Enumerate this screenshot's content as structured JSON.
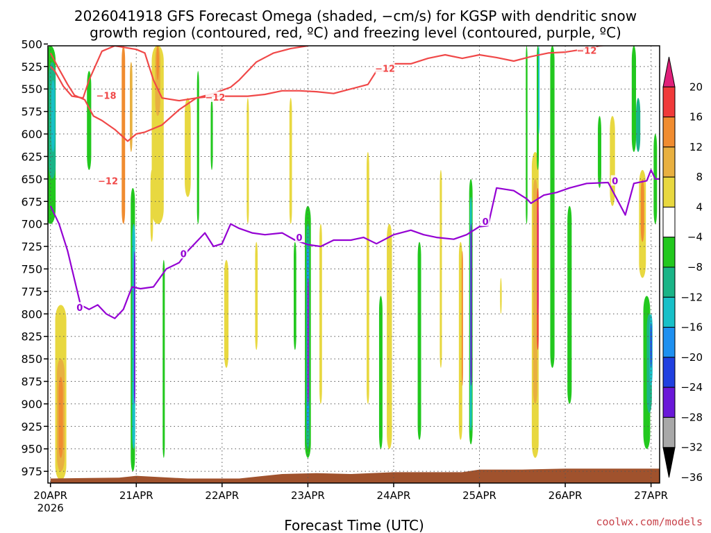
{
  "title": {
    "line1": "2026041918 GFS Forecast Omega (shaded, −cm/s) for KGSP with dendritic snow",
    "line2": "growth region (contoured, red, ºC) and freezing level (contoured, purple, ºC)"
  },
  "credit": "coolwx.com/models",
  "colors": {
    "dgz_line": "#f04848",
    "freezing_line": "#9400d3",
    "ground": "#a0522d",
    "grid": "#555555"
  },
  "chart_data": {
    "type": "heatmap",
    "xlabel": "Forecast Time (UTC)",
    "ylabel": "",
    "x_unit": "days after 2026-04-20 00Z",
    "xlim": [
      -0.03,
      7.1
    ],
    "ylim": [
      502,
      988
    ],
    "x_ticks": [
      {
        "x": 0,
        "label": "20APR",
        "sub": "2026"
      },
      {
        "x": 1,
        "label": "21APR",
        "sub": ""
      },
      {
        "x": 2,
        "label": "22APR",
        "sub": ""
      },
      {
        "x": 3,
        "label": "23APR",
        "sub": ""
      },
      {
        "x": 4,
        "label": "24APR",
        "sub": ""
      },
      {
        "x": 5,
        "label": "25APR",
        "sub": ""
      },
      {
        "x": 6,
        "label": "26APR",
        "sub": ""
      },
      {
        "x": 7,
        "label": "27APR",
        "sub": ""
      }
    ],
    "y_ticks": [
      "500",
      "525",
      "550",
      "575",
      "600",
      "625",
      "650",
      "675",
      "700",
      "725",
      "750",
      "775",
      "800",
      "825",
      "850",
      "875",
      "900",
      "925",
      "950",
      "975"
    ],
    "colorbar": {
      "labels": [
        "20",
        "16",
        "12",
        "8",
        "4",
        "−4",
        "−8",
        "−12",
        "−16",
        "−20",
        "−24",
        "−28",
        "−32",
        "−36"
      ],
      "bands": [
        {
          "lo": 20,
          "hi": 24,
          "color": "#e0207a"
        },
        {
          "lo": 16,
          "hi": 20,
          "color": "#f03a3a"
        },
        {
          "lo": 12,
          "hi": 16,
          "color": "#f08c30"
        },
        {
          "lo": 8,
          "hi": 12,
          "color": "#e8b040"
        },
        {
          "lo": 4,
          "hi": 8,
          "color": "#e8d840"
        },
        {
          "lo": -4,
          "hi": 4,
          "color": "#ffffff"
        },
        {
          "lo": -8,
          "hi": -4,
          "color": "#22c81e"
        },
        {
          "lo": -12,
          "hi": -8,
          "color": "#1ab487"
        },
        {
          "lo": -16,
          "hi": -12,
          "color": "#18c0c8"
        },
        {
          "lo": -20,
          "hi": -16,
          "color": "#1e90f0"
        },
        {
          "lo": -24,
          "hi": -20,
          "color": "#2040e0"
        },
        {
          "lo": -28,
          "hi": -24,
          "color": "#6a18d8"
        },
        {
          "lo": -32,
          "hi": -28,
          "color": "#a010c8"
        },
        {
          "lo": -36,
          "hi": -32,
          "color": "#a8a8a8"
        }
      ]
    },
    "omega_features": [
      {
        "x": 0.0,
        "w": 0.12,
        "p0": 502,
        "p1": 700,
        "v": -8
      },
      {
        "x": 0.02,
        "w": 0.08,
        "p0": 520,
        "p1": 650,
        "v": -12
      },
      {
        "x": 0.03,
        "w": 0.04,
        "p0": 540,
        "p1": 620,
        "v": -14
      },
      {
        "x": 0.12,
        "w": 0.13,
        "p0": 790,
        "p1": 985,
        "v": 6
      },
      {
        "x": 0.12,
        "w": 0.09,
        "p0": 850,
        "p1": 975,
        "v": 10
      },
      {
        "x": 0.12,
        "w": 0.05,
        "p0": 870,
        "p1": 960,
        "v": 14
      },
      {
        "x": 0.45,
        "w": 0.05,
        "p0": 530,
        "p1": 640,
        "v": -6
      },
      {
        "x": 0.85,
        "w": 0.04,
        "p0": 502,
        "p1": 700,
        "v": 12
      },
      {
        "x": 0.94,
        "w": 0.03,
        "p0": 520,
        "p1": 620,
        "v": 8
      },
      {
        "x": 0.96,
        "w": 0.05,
        "p0": 660,
        "p1": 975,
        "v": -6
      },
      {
        "x": 0.97,
        "w": 0.035,
        "p0": 700,
        "p1": 950,
        "v": -16
      },
      {
        "x": 0.98,
        "w": 0.015,
        "p0": 730,
        "p1": 900,
        "v": -26
      },
      {
        "x": 1.25,
        "w": 0.14,
        "p0": 502,
        "p1": 700,
        "v": 5
      },
      {
        "x": 1.25,
        "w": 0.06,
        "p0": 502,
        "p1": 580,
        "v": 10
      },
      {
        "x": 1.25,
        "w": 0.03,
        "p0": 502,
        "p1": 540,
        "v": 15
      },
      {
        "x": 1.18,
        "w": 0.03,
        "p0": 640,
        "p1": 720,
        "v": 6
      },
      {
        "x": 1.32,
        "w": 0.025,
        "p0": 740,
        "p1": 960,
        "v": -6
      },
      {
        "x": 1.6,
        "w": 0.07,
        "p0": 560,
        "p1": 670,
        "v": 5
      },
      {
        "x": 1.72,
        "w": 0.025,
        "p0": 530,
        "p1": 700,
        "v": -6
      },
      {
        "x": 1.88,
        "w": 0.025,
        "p0": 560,
        "p1": 640,
        "v": -6
      },
      {
        "x": 2.05,
        "w": 0.05,
        "p0": 740,
        "p1": 860,
        "v": 6
      },
      {
        "x": 2.3,
        "w": 0.025,
        "p0": 560,
        "p1": 700,
        "v": 5
      },
      {
        "x": 2.4,
        "w": 0.03,
        "p0": 720,
        "p1": 840,
        "v": 5
      },
      {
        "x": 2.8,
        "w": 0.03,
        "p0": 560,
        "p1": 700,
        "v": 5
      },
      {
        "x": 2.85,
        "w": 0.03,
        "p0": 720,
        "p1": 840,
        "v": -6
      },
      {
        "x": 3.0,
        "w": 0.07,
        "p0": 680,
        "p1": 960,
        "v": -7
      },
      {
        "x": 3.0,
        "w": 0.04,
        "p0": 700,
        "p1": 950,
        "v": -12
      },
      {
        "x": 3.0,
        "w": 0.022,
        "p0": 720,
        "p1": 930,
        "v": -18
      },
      {
        "x": 3.0,
        "w": 0.01,
        "p0": 760,
        "p1": 900,
        "v": -29
      },
      {
        "x": 3.15,
        "w": 0.03,
        "p0": 700,
        "p1": 900,
        "v": 5
      },
      {
        "x": 3.7,
        "w": 0.03,
        "p0": 620,
        "p1": 900,
        "v": 5
      },
      {
        "x": 3.95,
        "w": 0.06,
        "p0": 700,
        "p1": 950,
        "v": 5
      },
      {
        "x": 3.85,
        "w": 0.04,
        "p0": 780,
        "p1": 950,
        "v": -6
      },
      {
        "x": 4.3,
        "w": 0.04,
        "p0": 720,
        "p1": 940,
        "v": -6
      },
      {
        "x": 4.55,
        "w": 0.025,
        "p0": 640,
        "p1": 860,
        "v": 5
      },
      {
        "x": 4.78,
        "w": 0.04,
        "p0": 720,
        "p1": 940,
        "v": 5
      },
      {
        "x": 4.8,
        "w": 0.015,
        "p0": 730,
        "p1": 880,
        "v": 14
      },
      {
        "x": 4.9,
        "w": 0.04,
        "p0": 650,
        "p1": 945,
        "v": -7
      },
      {
        "x": 4.9,
        "w": 0.022,
        "p0": 670,
        "p1": 930,
        "v": -15
      },
      {
        "x": 4.9,
        "w": 0.01,
        "p0": 700,
        "p1": 880,
        "v": -27
      },
      {
        "x": 5.25,
        "w": 0.02,
        "p0": 760,
        "p1": 800,
        "v": 5
      },
      {
        "x": 5.55,
        "w": 0.02,
        "p0": 502,
        "p1": 700,
        "v": -6
      },
      {
        "x": 5.65,
        "w": 0.08,
        "p0": 620,
        "p1": 960,
        "v": 5
      },
      {
        "x": 5.65,
        "w": 0.05,
        "p0": 650,
        "p1": 900,
        "v": 8
      },
      {
        "x": 5.68,
        "w": 0.02,
        "p0": 660,
        "p1": 840,
        "v": 18
      },
      {
        "x": 5.68,
        "w": 0.012,
        "p0": 680,
        "p1": 800,
        "v": 22
      },
      {
        "x": 5.68,
        "w": 0.025,
        "p0": 502,
        "p1": 640,
        "v": -8
      },
      {
        "x": 5.69,
        "w": 0.012,
        "p0": 502,
        "p1": 600,
        "v": -13
      },
      {
        "x": 5.85,
        "w": 0.05,
        "p0": 502,
        "p1": 860,
        "v": -6
      },
      {
        "x": 6.05,
        "w": 0.05,
        "p0": 680,
        "p1": 900,
        "v": -6
      },
      {
        "x": 6.4,
        "w": 0.04,
        "p0": 580,
        "p1": 660,
        "v": -6
      },
      {
        "x": 6.55,
        "w": 0.06,
        "p0": 580,
        "p1": 680,
        "v": 5
      },
      {
        "x": 6.8,
        "w": 0.05,
        "p0": 502,
        "p1": 620,
        "v": -6
      },
      {
        "x": 6.85,
        "w": 0.05,
        "p0": 560,
        "p1": 620,
        "v": -11
      },
      {
        "x": 6.9,
        "w": 0.08,
        "p0": 640,
        "p1": 760,
        "v": 6
      },
      {
        "x": 6.9,
        "w": 0.04,
        "p0": 650,
        "p1": 720,
        "v": 12
      },
      {
        "x": 6.95,
        "w": 0.08,
        "p0": 780,
        "p1": 950,
        "v": -7
      },
      {
        "x": 6.98,
        "w": 0.06,
        "p0": 800,
        "p1": 910,
        "v": -12
      },
      {
        "x": 7.0,
        "w": 0.035,
        "p0": 800,
        "p1": 880,
        "v": -16
      },
      {
        "x": 7.0,
        "w": 0.018,
        "p0": 810,
        "p1": 860,
        "v": -22
      },
      {
        "x": 7.05,
        "w": 0.04,
        "p0": 600,
        "p1": 700,
        "v": -6
      }
    ],
    "dgz_minus12": [
      [
        0.0,
        525
      ],
      [
        0.05,
        530
      ],
      [
        0.15,
        547
      ],
      [
        0.25,
        558
      ],
      [
        0.38,
        560
      ],
      [
        0.45,
        540
      ],
      [
        0.52,
        525
      ],
      [
        0.6,
        508
      ],
      [
        0.75,
        502
      ],
      [
        1.0,
        506
      ],
      [
        1.1,
        510
      ],
      [
        1.2,
        540
      ],
      [
        1.3,
        560
      ],
      [
        1.5,
        563
      ],
      [
        1.7,
        560
      ],
      [
        1.9,
        558
      ],
      [
        2.1,
        558
      ],
      [
        2.3,
        558
      ],
      [
        2.5,
        556
      ],
      [
        2.7,
        552
      ],
      [
        2.9,
        552
      ],
      [
        3.1,
        553
      ],
      [
        3.3,
        555
      ],
      [
        3.5,
        550
      ],
      [
        3.7,
        545
      ],
      [
        3.8,
        530
      ],
      [
        3.9,
        530
      ],
      [
        4.0,
        522
      ],
      [
        4.2,
        522
      ],
      [
        4.4,
        516
      ],
      [
        4.6,
        512
      ],
      [
        4.8,
        516
      ],
      [
        5.0,
        512
      ],
      [
        5.2,
        515
      ],
      [
        5.4,
        519
      ],
      [
        5.6,
        514
      ],
      [
        5.8,
        510
      ],
      [
        6.0,
        509
      ],
      [
        6.2,
        506
      ],
      [
        6.4,
        502
      ],
      [
        6.6,
        500
      ],
      [
        7.2,
        500
      ]
    ],
    "dgz_minus18": [
      [
        0.0,
        510
      ],
      [
        0.1,
        528
      ],
      [
        0.2,
        545
      ],
      [
        0.28,
        557
      ],
      [
        0.4,
        562
      ],
      [
        0.5,
        580
      ],
      [
        0.6,
        585
      ],
      [
        0.75,
        595
      ],
      [
        0.9,
        608
      ],
      [
        1.0,
        600
      ],
      [
        1.1,
        598
      ],
      [
        1.3,
        590
      ],
      [
        1.5,
        573
      ],
      [
        1.7,
        560
      ],
      [
        1.9,
        555
      ],
      [
        2.1,
        548
      ],
      [
        2.2,
        540
      ],
      [
        2.4,
        520
      ],
      [
        2.6,
        510
      ],
      [
        2.8,
        505
      ],
      [
        3.0,
        502
      ]
    ],
    "freezing_level": [
      [
        0.0,
        680
      ],
      [
        0.1,
        700
      ],
      [
        0.2,
        730
      ],
      [
        0.3,
        770
      ],
      [
        0.35,
        790
      ],
      [
        0.45,
        795
      ],
      [
        0.55,
        790
      ],
      [
        0.65,
        800
      ],
      [
        0.75,
        805
      ],
      [
        0.85,
        795
      ],
      [
        0.95,
        770
      ],
      [
        1.05,
        772
      ],
      [
        1.2,
        770
      ],
      [
        1.35,
        750
      ],
      [
        1.5,
        743
      ],
      [
        1.6,
        730
      ],
      [
        1.7,
        720
      ],
      [
        1.8,
        710
      ],
      [
        1.9,
        725
      ],
      [
        2.0,
        722
      ],
      [
        2.1,
        700
      ],
      [
        2.2,
        705
      ],
      [
        2.35,
        710
      ],
      [
        2.5,
        712
      ],
      [
        2.7,
        710
      ],
      [
        2.85,
        718
      ],
      [
        3.0,
        723
      ],
      [
        3.15,
        725
      ],
      [
        3.3,
        718
      ],
      [
        3.5,
        718
      ],
      [
        3.65,
        715
      ],
      [
        3.8,
        722
      ],
      [
        4.0,
        712
      ],
      [
        4.2,
        707
      ],
      [
        4.35,
        712
      ],
      [
        4.5,
        715
      ],
      [
        4.7,
        717
      ],
      [
        4.85,
        712
      ],
      [
        5.0,
        703
      ],
      [
        5.1,
        702
      ],
      [
        5.2,
        660
      ],
      [
        5.4,
        663
      ],
      [
        5.55,
        672
      ],
      [
        5.6,
        677
      ],
      [
        5.75,
        668
      ],
      [
        5.9,
        665
      ],
      [
        6.05,
        660
      ],
      [
        6.25,
        655
      ],
      [
        6.5,
        654
      ],
      [
        6.7,
        690
      ],
      [
        6.8,
        655
      ],
      [
        6.95,
        652
      ],
      [
        7.0,
        640
      ],
      [
        7.05,
        650
      ],
      [
        7.2,
        650
      ]
    ],
    "contour_labels": [
      {
        "x": 0.65,
        "p": 557,
        "text": "−18",
        "line": "dgz"
      },
      {
        "x": 0.67,
        "p": 652,
        "text": "−12",
        "line": "dgz"
      },
      {
        "x": 1.92,
        "p": 559,
        "text": "−12",
        "line": "dgz"
      },
      {
        "x": 3.9,
        "p": 527,
        "text": "−12",
        "line": "dgz"
      },
      {
        "x": 6.25,
        "p": 507,
        "text": "−12",
        "line": "dgz"
      },
      {
        "x": 0.34,
        "p": 793,
        "text": "0",
        "line": "frz"
      },
      {
        "x": 1.55,
        "p": 733,
        "text": "0",
        "line": "frz"
      },
      {
        "x": 2.9,
        "p": 715,
        "text": "0",
        "line": "frz"
      },
      {
        "x": 5.07,
        "p": 697,
        "text": "0",
        "line": "frz"
      },
      {
        "x": 6.58,
        "p": 652,
        "text": "0",
        "line": "frz"
      }
    ],
    "ground": [
      [
        0.0,
        983
      ],
      [
        0.8,
        982
      ],
      [
        1.0,
        980
      ],
      [
        1.6,
        983
      ],
      [
        2.2,
        983
      ],
      [
        2.7,
        978
      ],
      [
        3.1,
        977
      ],
      [
        3.5,
        978
      ],
      [
        4.0,
        976
      ],
      [
        4.8,
        976
      ],
      [
        5.0,
        973
      ],
      [
        5.5,
        973
      ],
      [
        6.0,
        972
      ],
      [
        6.8,
        972
      ],
      [
        7.2,
        972
      ]
    ]
  }
}
